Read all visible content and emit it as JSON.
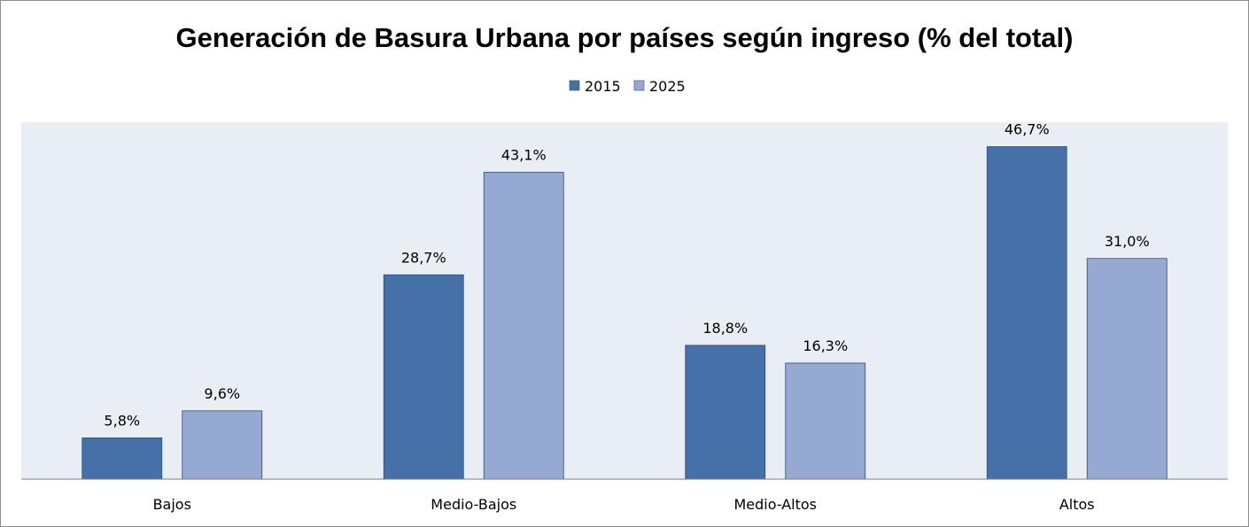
{
  "chart_data": {
    "type": "bar",
    "title": "Generación de Basura Urbana por países según ingreso (% del total)",
    "categories": [
      "Bajos",
      "Medio-Bajos",
      "Medio-Altos",
      "Altos"
    ],
    "series": [
      {
        "name": "2015",
        "values": [
          5.8,
          28.7,
          18.8,
          46.7
        ],
        "labels": [
          "5,8%",
          "28,7%",
          "18,8%",
          "46,7%"
        ],
        "color": "#4571a8"
      },
      {
        "name": "2025",
        "values": [
          9.6,
          43.1,
          16.3,
          31.0
        ],
        "labels": [
          "9,6%",
          "43,1%",
          "16,3%",
          "31,0%"
        ],
        "color": "#95a9d2"
      }
    ],
    "ylim": [
      0,
      50
    ],
    "legend": "top-center",
    "grid": false,
    "plot_background": "#e9edf4"
  }
}
